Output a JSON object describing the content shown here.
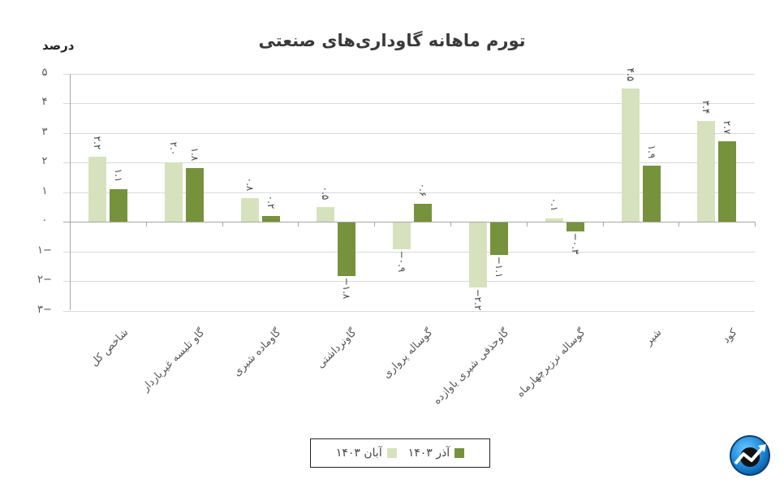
{
  "chart_data": {
    "type": "bar",
    "title": "تورم ماهانه گاوداری‌های صنعتی",
    "ylabel": "درصد",
    "xlabel": "",
    "ylim": [
      -3,
      5
    ],
    "yticks": [
      "۵",
      "۴",
      "۳",
      "۲",
      "۱",
      "۰",
      "−۱",
      "−۲",
      "−۳"
    ],
    "ytick_values": [
      5,
      4,
      3,
      2,
      1,
      0,
      -1,
      -2,
      -3
    ],
    "grid": true,
    "legend_position": "bottom",
    "categories": [
      "شاخص کل",
      "گاو تلیسه غیرباردار",
      "گاوماده شیری",
      "گاونرداشتی",
      "گوساله پرواری",
      "گاوحذفی شیری یاوازده",
      "گوساله نرزیرچهارماه",
      "شیر",
      "کود"
    ],
    "series": [
      {
        "name": "آبان ۱۴۰۳",
        "color": "#d6e2bd",
        "values": [
          2.2,
          2.0,
          0.8,
          0.5,
          -0.9,
          -2.2,
          0.1,
          4.5,
          3.4
        ],
        "labels": [
          "۲.۲",
          "۲.۰",
          "۰.۸",
          "۰.۵",
          "−۰.۹",
          "−۲.۲",
          "۰.۱",
          "۴.۵",
          "۳.۴"
        ]
      },
      {
        "name": "آذر ۱۴۰۳",
        "color": "#76923c",
        "values": [
          1.1,
          1.8,
          0.2,
          -1.8,
          0.6,
          -1.1,
          -0.3,
          1.9,
          2.7
        ],
        "labels": [
          "۱.۱",
          "۱.۸",
          "۰.۲",
          "−۱.۸",
          "۰.۶",
          "−۱.۱",
          "−۰.۳",
          "۱.۹",
          "۲.۷"
        ]
      }
    ]
  },
  "legend": {
    "aban": "آبان ۱۴۰۳",
    "azar": "آذر ۱۴۰۳"
  },
  "logo": {
    "icon": "trend-chart-logo-icon",
    "color": "#1e90d8"
  }
}
